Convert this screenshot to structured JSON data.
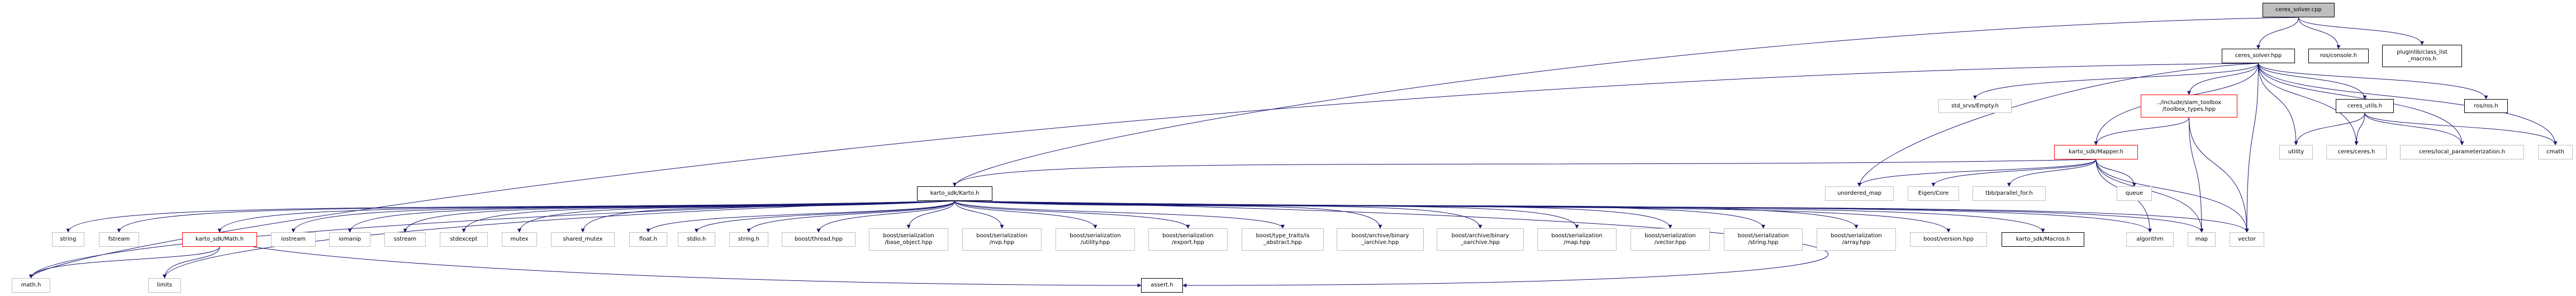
{
  "title": "ceres_solver.cpp",
  "edge_color": "#191970",
  "nodes": [
    {
      "id": "cpp",
      "label": "ceres_solver.cpp",
      "kind": "root"
    },
    {
      "id": "hpp",
      "label": "ceres_solver.hpp",
      "kind": "doc"
    },
    {
      "id": "console",
      "label": "ros/console.h",
      "kind": "doc"
    },
    {
      "id": "pluginlib",
      "label": "pluginlib/class_list\n_macros.h",
      "kind": "doc"
    },
    {
      "id": "empty",
      "label": "std_srvs/Empty.h",
      "kind": "ext"
    },
    {
      "id": "toolbox",
      "label": "../include/slam_toolbox\n/toolbox_types.hpp",
      "kind": "red"
    },
    {
      "id": "cutils",
      "label": "ceres_utils.h",
      "kind": "doc"
    },
    {
      "id": "rosros",
      "label": "ros/ros.h",
      "kind": "doc"
    },
    {
      "id": "mapper",
      "label": "karto_sdk/Mapper.h",
      "kind": "red"
    },
    {
      "id": "utility",
      "label": "utility",
      "kind": "ext"
    },
    {
      "id": "ceres",
      "label": "ceres/ceres.h",
      "kind": "ext"
    },
    {
      "id": "localparam",
      "label": "ceres/local_parameterization.h",
      "kind": "ext"
    },
    {
      "id": "cmath",
      "label": "cmath",
      "kind": "ext"
    },
    {
      "id": "karto",
      "label": "karto_sdk/Karto.h",
      "kind": "doc"
    },
    {
      "id": "umap",
      "label": "unordered_map",
      "kind": "ext"
    },
    {
      "id": "eigen",
      "label": "Eigen/Core",
      "kind": "ext"
    },
    {
      "id": "tbb",
      "label": "tbb/parallel_for.h",
      "kind": "ext"
    },
    {
      "id": "queue",
      "label": "queue",
      "kind": "ext"
    },
    {
      "id": "string",
      "label": "string",
      "kind": "ext"
    },
    {
      "id": "fstream",
      "label": "fstream",
      "kind": "ext"
    },
    {
      "id": "kmath",
      "label": "karto_sdk/Math.h",
      "kind": "red"
    },
    {
      "id": "iostream",
      "label": "iostream",
      "kind": "ext"
    },
    {
      "id": "iomanip",
      "label": "iomanip",
      "kind": "ext"
    },
    {
      "id": "sstream",
      "label": "sstream",
      "kind": "ext"
    },
    {
      "id": "stdexcept",
      "label": "stdexcept",
      "kind": "ext"
    },
    {
      "id": "mutex",
      "label": "mutex",
      "kind": "ext"
    },
    {
      "id": "shmutex",
      "label": "shared_mutex",
      "kind": "ext"
    },
    {
      "id": "floath",
      "label": "float.h",
      "kind": "ext"
    },
    {
      "id": "stdio",
      "label": "stdio.h",
      "kind": "ext"
    },
    {
      "id": "stringh",
      "label": "string.h",
      "kind": "ext"
    },
    {
      "id": "thread",
      "label": "boost/thread.hpp",
      "kind": "ext"
    },
    {
      "id": "baseobj",
      "label": "boost/serialization\n/base_object.hpp",
      "kind": "ext"
    },
    {
      "id": "nvp",
      "label": "boost/serialization\n/nvp.hpp",
      "kind": "ext"
    },
    {
      "id": "serutil",
      "label": "boost/serialization\n/utility.hpp",
      "kind": "ext"
    },
    {
      "id": "export",
      "label": "boost/serialization\n/export.hpp",
      "kind": "ext"
    },
    {
      "id": "isabs",
      "label": "boost/type_traits/is\n_abstract.hpp",
      "kind": "ext"
    },
    {
      "id": "biarch",
      "label": "boost/archive/binary\n_iarchive.hpp",
      "kind": "ext"
    },
    {
      "id": "boarch",
      "label": "boost/archive/binary\n_oarchive.hpp",
      "kind": "ext"
    },
    {
      "id": "sermap",
      "label": "boost/serialization\n/map.hpp",
      "kind": "ext"
    },
    {
      "id": "servec",
      "label": "boost/serialization\n/vector.hpp",
      "kind": "ext"
    },
    {
      "id": "serstr",
      "label": "boost/serialization\n/string.hpp",
      "kind": "ext"
    },
    {
      "id": "serarr",
      "label": "boost/serialization\n/array.hpp",
      "kind": "ext"
    },
    {
      "id": "version",
      "label": "boost/version.hpp",
      "kind": "ext"
    },
    {
      "id": "macros",
      "label": "karto_sdk/Macros.h",
      "kind": "doc"
    },
    {
      "id": "algorithm",
      "label": "algorithm",
      "kind": "ext"
    },
    {
      "id": "map",
      "label": "map",
      "kind": "ext"
    },
    {
      "id": "vector",
      "label": "vector",
      "kind": "ext"
    },
    {
      "id": "mathh",
      "label": "math.h",
      "kind": "ext"
    },
    {
      "id": "limits",
      "label": "limits",
      "kind": "ext"
    },
    {
      "id": "assert",
      "label": "assert.h",
      "kind": "doc"
    }
  ],
  "edges": [
    [
      "cpp",
      "hpp"
    ],
    [
      "cpp",
      "console"
    ],
    [
      "cpp",
      "pluginlib"
    ],
    [
      "cpp",
      "karto"
    ],
    [
      "hpp",
      "empty"
    ],
    [
      "hpp",
      "toolbox"
    ],
    [
      "hpp",
      "mapper"
    ],
    [
      "hpp",
      "umap"
    ],
    [
      "hpp",
      "utility"
    ],
    [
      "hpp",
      "ceres"
    ],
    [
      "hpp",
      "cutils"
    ],
    [
      "hpp",
      "localparam"
    ],
    [
      "hpp",
      "rosros"
    ],
    [
      "hpp",
      "cmath"
    ],
    [
      "hpp",
      "vector"
    ],
    [
      "hpp",
      "mathh"
    ],
    [
      "toolbox",
      "mapper"
    ],
    [
      "toolbox",
      "map"
    ],
    [
      "toolbox",
      "vector"
    ],
    [
      "cutils",
      "utility"
    ],
    [
      "cutils",
      "ceres"
    ],
    [
      "cutils",
      "localparam"
    ],
    [
      "cutils",
      "cmath"
    ],
    [
      "mapper",
      "karto"
    ],
    [
      "mapper",
      "umap"
    ],
    [
      "mapper",
      "eigen"
    ],
    [
      "mapper",
      "tbb"
    ],
    [
      "mapper",
      "queue"
    ],
    [
      "mapper",
      "algorithm"
    ],
    [
      "mapper",
      "map"
    ],
    [
      "mapper",
      "vector"
    ],
    [
      "karto",
      "string"
    ],
    [
      "karto",
      "fstream"
    ],
    [
      "karto",
      "kmath"
    ],
    [
      "karto",
      "iostream"
    ],
    [
      "karto",
      "iomanip"
    ],
    [
      "karto",
      "sstream"
    ],
    [
      "karto",
      "stdexcept"
    ],
    [
      "karto",
      "mutex"
    ],
    [
      "karto",
      "shmutex"
    ],
    [
      "karto",
      "floath"
    ],
    [
      "karto",
      "stdio"
    ],
    [
      "karto",
      "stringh"
    ],
    [
      "karto",
      "thread"
    ],
    [
      "karto",
      "baseobj"
    ],
    [
      "karto",
      "nvp"
    ],
    [
      "karto",
      "serutil"
    ],
    [
      "karto",
      "export"
    ],
    [
      "karto",
      "isabs"
    ],
    [
      "karto",
      "biarch"
    ],
    [
      "karto",
      "boarch"
    ],
    [
      "karto",
      "sermap"
    ],
    [
      "karto",
      "servec"
    ],
    [
      "karto",
      "serstr"
    ],
    [
      "karto",
      "serarr"
    ],
    [
      "karto",
      "version"
    ],
    [
      "karto",
      "macros"
    ],
    [
      "karto",
      "algorithm"
    ],
    [
      "karto",
      "map"
    ],
    [
      "karto",
      "vector"
    ],
    [
      "karto",
      "mathh"
    ],
    [
      "karto",
      "limits"
    ],
    [
      "karto",
      "assert"
    ],
    [
      "kmath",
      "mathh"
    ],
    [
      "kmath",
      "limits"
    ],
    [
      "kmath",
      "assert"
    ]
  ]
}
